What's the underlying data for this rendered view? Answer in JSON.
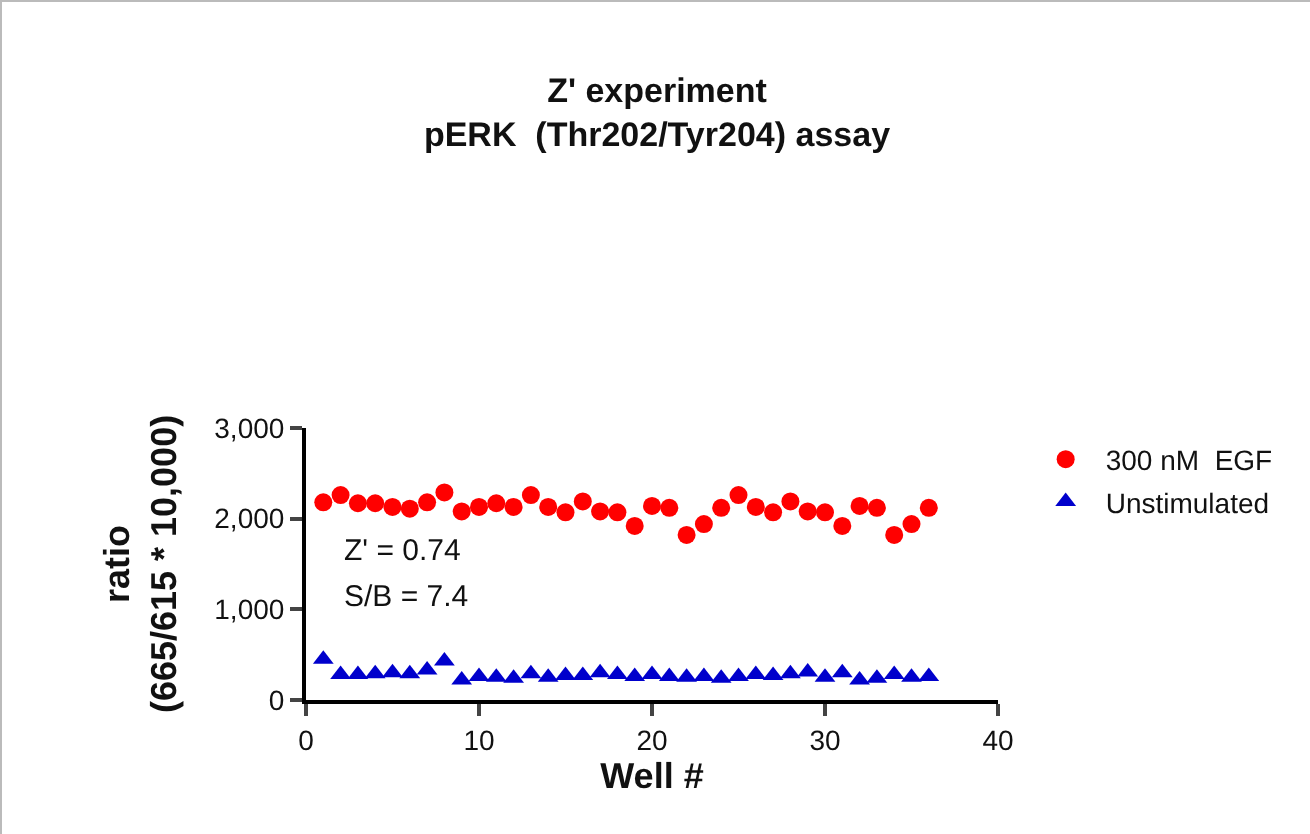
{
  "chart_data": {
    "type": "scatter",
    "title": "Z' experiment\npERK  (Thr202/Tyr204) assay",
    "xlabel": "Well #",
    "ylabel": "ratio\n(665/615 * 10,000)",
    "x": [
      1,
      2,
      3,
      4,
      5,
      6,
      7,
      8,
      9,
      10,
      11,
      12,
      13,
      14,
      15,
      16,
      17,
      18,
      19,
      20,
      21,
      22,
      23,
      24,
      25,
      26,
      27,
      28,
      29,
      30,
      31,
      32,
      33,
      34,
      35,
      36
    ],
    "series": [
      {
        "name": "300 nM  EGF",
        "color": "#ff0000",
        "marker": "circle",
        "values": [
          2180,
          2260,
          2170,
          2170,
          2130,
          2110,
          2180,
          2290,
          2080,
          2130,
          2170,
          2130,
          2260,
          2130,
          2070,
          2190,
          2080,
          2070,
          1920,
          2140,
          2120,
          1820,
          1940,
          2120,
          2260,
          2130,
          2070,
          2190,
          2080,
          2070,
          1920,
          2140,
          2120,
          1820,
          1940,
          2120
        ]
      },
      {
        "name": "Unstimulated",
        "color": "#0000cc",
        "marker": "triangle",
        "values": [
          450,
          280,
          280,
          290,
          300,
          290,
          330,
          430,
          220,
          260,
          250,
          240,
          290,
          250,
          270,
          270,
          300,
          280,
          260,
          280,
          260,
          250,
          260,
          240,
          260,
          280,
          270,
          290,
          310,
          250,
          300,
          220,
          240,
          280,
          250,
          260
        ]
      }
    ],
    "xlim": [
      0,
      40
    ],
    "xticks": [
      0,
      10,
      20,
      30,
      40
    ],
    "ylim": [
      0,
      3000
    ],
    "yticks": [
      0,
      {
        "value": 1000,
        "label": "1,000"
      },
      {
        "value": 2000,
        "label": "2,000"
      },
      {
        "value": 3000,
        "label": "3,000"
      }
    ],
    "annotations": [
      "Z' = 0.74",
      "S/B = 7.4"
    ],
    "legend": "right",
    "grid": false
  }
}
